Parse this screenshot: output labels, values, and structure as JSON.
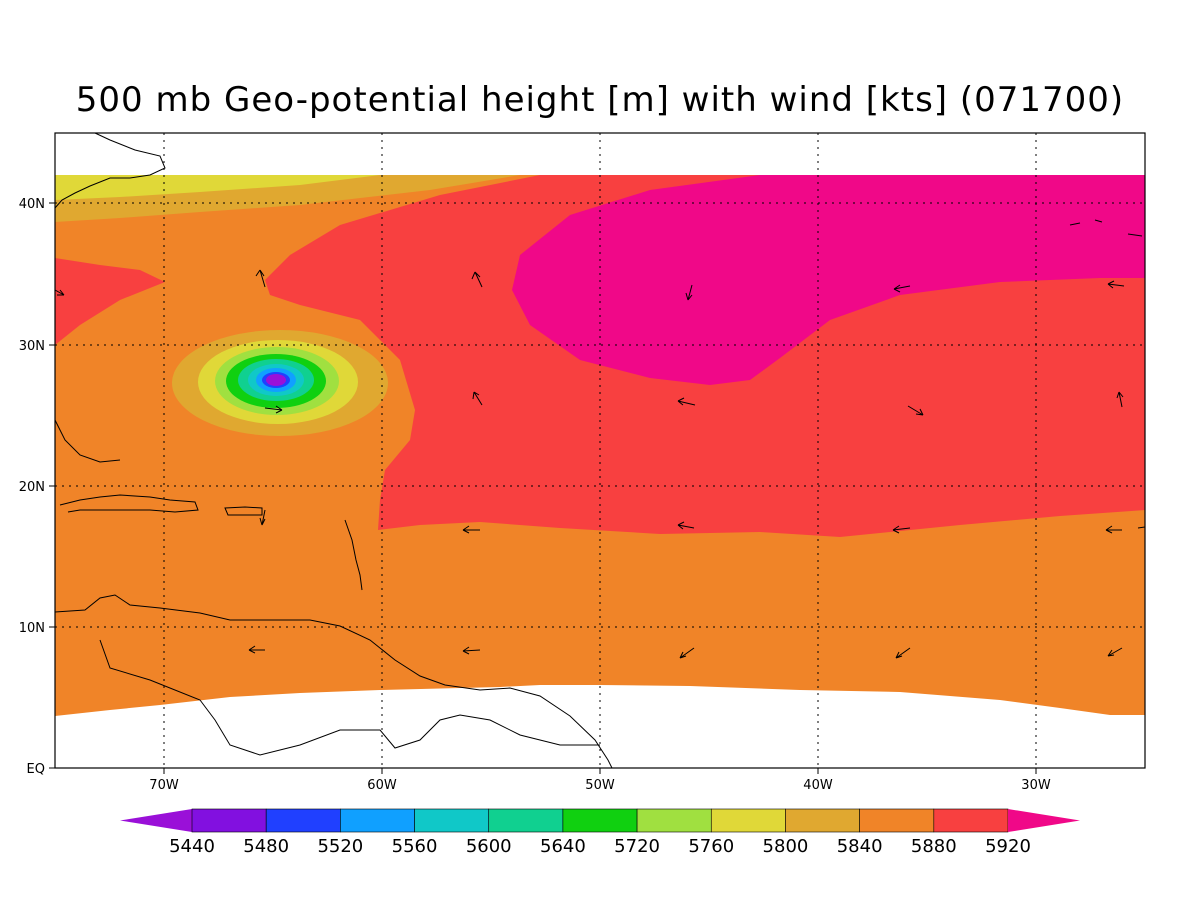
{
  "title": "500 mb Geo-potential height [m] with wind [kts] (071700)",
  "lat_labels": [
    "EQ",
    "10N",
    "20N",
    "30N",
    "40N"
  ],
  "lon_labels": [
    "70W",
    "60W",
    "50W",
    "40W",
    "30W"
  ],
  "colorbar": {
    "labels": [
      "5440",
      "5480",
      "5520",
      "5560",
      "5600",
      "5640",
      "5720",
      "5760",
      "5800",
      "5840",
      "5880",
      "5920"
    ],
    "colors": [
      "#9a10d8",
      "#8210e0",
      "#2040ff",
      "#10a0ff",
      "#10c8c8",
      "#10d090",
      "#10d010",
      "#a0e040",
      "#e0d838",
      "#e0a830",
      "#f08428",
      "#f84040",
      "#f00888"
    ]
  },
  "fill_colors": {
    "c5440": "#9a10d8",
    "c5480": "#8210e0",
    "c5520": "#2040ff",
    "c5560": "#10a0ff",
    "c5600": "#10c8c8",
    "c5640": "#10d090",
    "c5720": "#10d010",
    "c5760": "#a0e040",
    "c5800": "#e0d838",
    "c5840": "#e0a830",
    "c5880": "#f08428",
    "c5920": "#f84040",
    "c5960": "#f00888"
  }
}
